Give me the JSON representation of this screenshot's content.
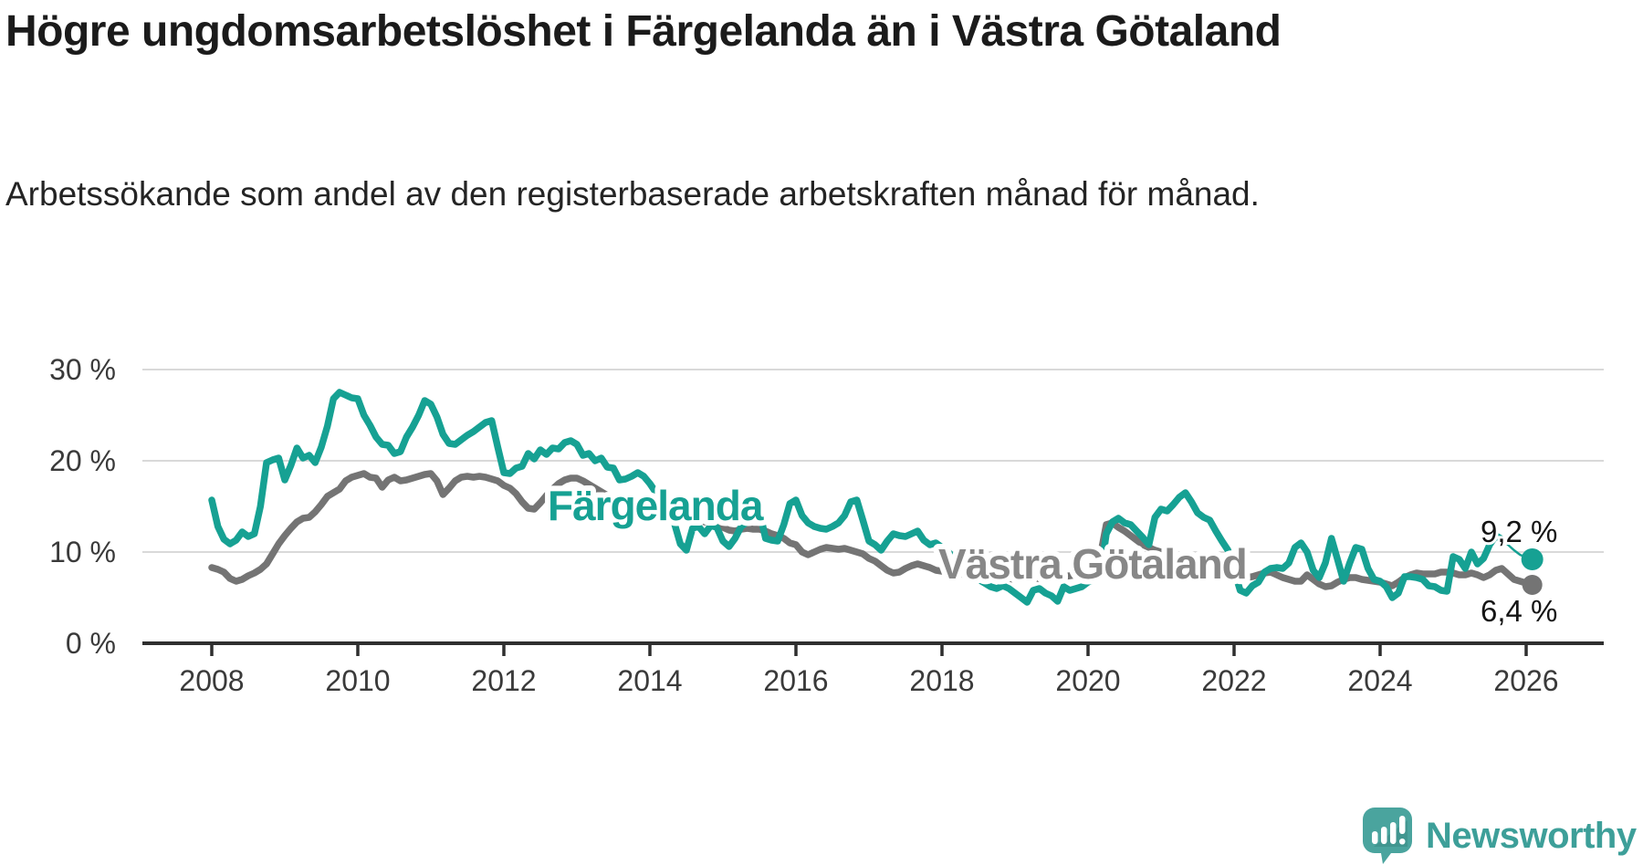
{
  "header": {
    "title": "Högre ungdomsarbetslöshet i Färgelanda än i Västra Götaland",
    "subtitle": "Arbetssökande som andel av den registerbaserade arbetskraften månad för månad."
  },
  "branding": {
    "logo_text": "Newsworthy",
    "logo_icon": "speech-bubble-bar-chart"
  },
  "colors": {
    "accent_teal": "#16a193",
    "series_gray": "#747474",
    "gridline": "#d9d9d9",
    "axis": "#2f2f2f",
    "tick_text": "#3a3a3a",
    "value_label_text": "#141414",
    "logo_teal": "#4aa49e"
  },
  "chart_data": {
    "type": "line",
    "title": "Högre ungdomsarbetslöshet i Färgelanda än i Västra Götaland",
    "subtitle": "Arbetssökande som andel av den registerbaserade arbetskraften månad för månad.",
    "frequency": "monthly",
    "x_start": "2008-01",
    "x_end": "2026-02",
    "x_tick_labels": [
      "2008",
      "2010",
      "2012",
      "2014",
      "2016",
      "2018",
      "2020",
      "2022",
      "2024",
      "2026"
    ],
    "y_tick_labels": [
      "0 %",
      "10 %",
      "20 %",
      "30 %"
    ],
    "y_tick_values": [
      0,
      10,
      20,
      30
    ],
    "ylim": [
      0,
      32
    ],
    "grid": "horizontal-only",
    "legend_position": "inline-labels-on-lines",
    "series": [
      {
        "name": "Färgelanda",
        "color": "#16a193",
        "end_label": "9,2 %",
        "last_value": 9.2,
        "values": [
          15.7,
          12.8,
          11.4,
          10.9,
          11.3,
          12.2,
          11.7,
          12.0,
          15.0,
          19.8,
          20.1,
          20.3,
          17.9,
          19.5,
          21.4,
          20.3,
          20.6,
          19.8,
          21.5,
          23.8,
          26.8,
          27.5,
          27.2,
          26.9,
          26.8,
          25.0,
          23.9,
          22.6,
          21.8,
          21.7,
          20.8,
          21.0,
          22.6,
          23.7,
          25.0,
          26.6,
          26.2,
          24.8,
          22.9,
          21.9,
          21.8,
          22.3,
          22.8,
          23.2,
          23.7,
          24.2,
          24.4,
          21.5,
          18.7,
          18.6,
          19.2,
          19.4,
          20.8,
          20.2,
          21.2,
          20.7,
          21.4,
          21.3,
          22.0,
          22.2,
          21.8,
          20.6,
          20.8,
          20.0,
          20.3,
          19.3,
          19.2,
          17.9,
          18.0,
          18.3,
          18.7,
          18.3,
          17.5,
          16.5,
          15.0,
          13.8,
          13.2,
          10.9,
          10.2,
          12.6,
          12.8,
          12.0,
          12.9,
          12.7,
          11.2,
          10.6,
          11.5,
          12.8,
          13.3,
          13.8,
          14.5,
          11.5,
          11.3,
          11.2,
          13.0,
          15.3,
          15.7,
          14.0,
          13.2,
          12.8,
          12.6,
          12.5,
          12.8,
          13.2,
          14.0,
          15.5,
          15.7,
          13.5,
          11.2,
          10.8,
          10.2,
          11.2,
          12.0,
          11.8,
          11.7,
          12.0,
          12.3,
          11.3,
          10.8,
          11.0,
          10.5,
          10.0,
          9.4,
          8.8,
          8.2,
          7.6,
          7.0,
          6.6,
          6.2,
          6.0,
          6.3,
          6.0,
          5.5,
          5.0,
          4.5,
          5.8,
          6.0,
          5.5,
          5.2,
          4.6,
          6.2,
          5.8,
          6.0,
          6.2,
          6.7,
          7.0,
          7.2,
          12.0,
          13.3,
          13.7,
          13.2,
          13.0,
          12.3,
          11.6,
          10.8,
          13.8,
          14.7,
          14.5,
          15.2,
          16.0,
          16.5,
          15.5,
          14.3,
          13.8,
          13.5,
          12.3,
          11.2,
          10.2,
          8.0,
          5.8,
          5.5,
          6.3,
          6.7,
          7.8,
          8.2,
          8.3,
          8.2,
          8.8,
          10.5,
          11.0,
          10.0,
          8.0,
          7.2,
          8.8,
          11.5,
          9.2,
          6.8,
          8.8,
          10.5,
          10.3,
          8.2,
          7.0,
          6.8,
          6.2,
          5.0,
          5.5,
          7.3,
          7.3,
          7.2,
          7.0,
          6.3,
          6.2,
          5.8,
          5.7,
          9.5,
          9.2,
          8.2,
          10.0,
          8.7,
          9.3,
          10.8,
          11.8,
          11.4,
          10.8,
          10.2,
          9.7,
          9.4,
          9.2
        ]
      },
      {
        "name": "Västra Götaland",
        "color": "#747474",
        "end_label": "6,4 %",
        "last_value": 6.4,
        "values": [
          8.3,
          8.1,
          7.8,
          7.1,
          6.8,
          7.0,
          7.4,
          7.7,
          8.1,
          8.7,
          9.8,
          10.9,
          11.8,
          12.6,
          13.3,
          13.7,
          13.8,
          14.4,
          15.2,
          16.1,
          16.5,
          16.9,
          17.8,
          18.2,
          18.4,
          18.6,
          18.2,
          18.1,
          17.1,
          17.9,
          18.2,
          17.8,
          17.9,
          18.1,
          18.3,
          18.5,
          18.6,
          17.8,
          16.3,
          17.0,
          17.8,
          18.2,
          18.3,
          18.2,
          18.3,
          18.2,
          18.0,
          17.8,
          17.3,
          17.0,
          16.4,
          15.5,
          14.8,
          14.7,
          15.4,
          16.2,
          16.9,
          17.5,
          17.9,
          18.1,
          18.1,
          17.8,
          17.4,
          17.0,
          16.6,
          16.2,
          15.8,
          15.4,
          15.0,
          14.6,
          14.3,
          14.0,
          13.8,
          13.7,
          13.6,
          13.6,
          13.7,
          13.5,
          13.3,
          13.4,
          13.5,
          13.3,
          13.2,
          13.0,
          12.7,
          12.4,
          12.3,
          12.5,
          12.6,
          12.5,
          12.5,
          12.3,
          12.0,
          11.8,
          11.5,
          11.0,
          10.8,
          10.0,
          9.7,
          10.0,
          10.3,
          10.5,
          10.4,
          10.3,
          10.4,
          10.2,
          10.0,
          9.8,
          9.3,
          9.0,
          8.5,
          8.0,
          7.7,
          7.8,
          8.2,
          8.5,
          8.7,
          8.5,
          8.3,
          8.0,
          7.9,
          7.8,
          7.7,
          7.6,
          7.5,
          7.4,
          7.3,
          7.3,
          7.2,
          7.2,
          7.1,
          7.1,
          7.0,
          7.0,
          7.0,
          7.1,
          7.1,
          7.2,
          7.2,
          7.3,
          7.3,
          7.4,
          7.5,
          7.7,
          8.0,
          8.5,
          9.5,
          13.0,
          13.2,
          12.7,
          12.3,
          11.8,
          11.3,
          10.8,
          10.5,
          10.2,
          10.0,
          9.7,
          9.5,
          9.2,
          9.0,
          8.8,
          8.6,
          8.4,
          8.2,
          8.0,
          7.9,
          7.8,
          7.7,
          7.5,
          7.2,
          7.3,
          7.5,
          7.7,
          7.8,
          7.5,
          7.2,
          7.0,
          6.8,
          6.8,
          7.5,
          7.0,
          6.5,
          6.2,
          6.3,
          6.7,
          7.0,
          7.2,
          7.2,
          7.0,
          6.9,
          6.8,
          6.7,
          6.5,
          6.3,
          6.7,
          7.2,
          7.5,
          7.7,
          7.6,
          7.6,
          7.6,
          7.8,
          7.8,
          7.7,
          7.5,
          7.5,
          7.7,
          7.5,
          7.2,
          7.5,
          8.0,
          8.2,
          7.6,
          7.0,
          6.8,
          6.6,
          6.4
        ]
      }
    ]
  }
}
